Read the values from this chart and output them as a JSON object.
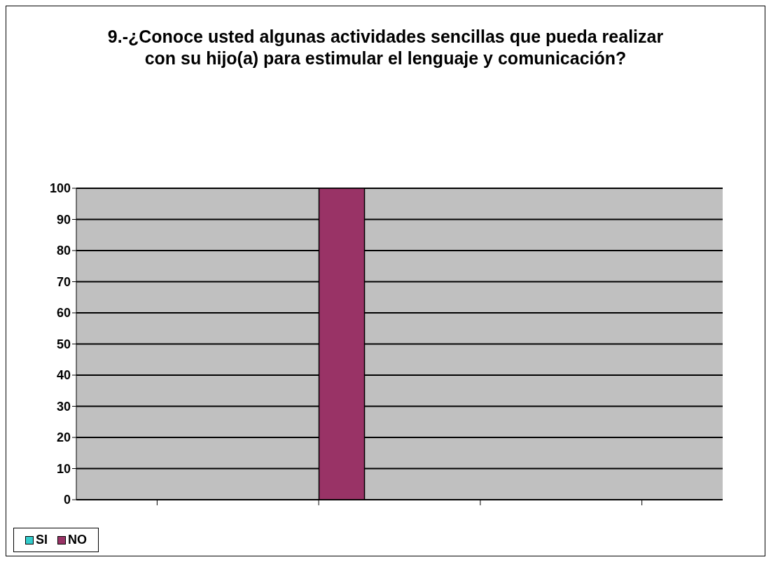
{
  "chart_data": {
    "type": "bar",
    "title": "9.-¿Conoce usted algunas actividades sencillas que pueda realizar con su hijo(a) para estimular el lenguaje y comunicación?",
    "categories": [
      null,
      null,
      null,
      null
    ],
    "series": [
      {
        "name": "SI",
        "color": "#33cccc",
        "values": [
          null,
          0,
          null,
          null
        ]
      },
      {
        "name": "NO",
        "color": "#993366",
        "values": [
          null,
          100,
          null,
          null
        ]
      }
    ],
    "ylim": [
      0,
      100
    ],
    "yticks": [
      0,
      10,
      20,
      30,
      40,
      50,
      60,
      70,
      80,
      90,
      100
    ],
    "grid": "y",
    "legend": "bottom"
  }
}
